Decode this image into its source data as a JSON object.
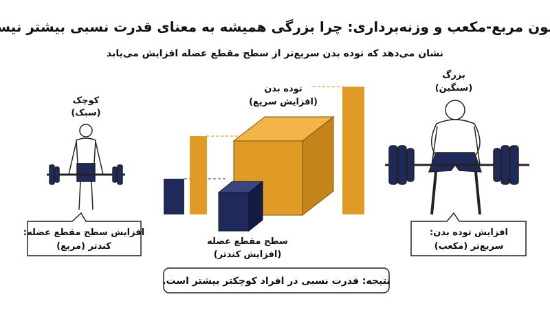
{
  "header": {
    "title": "قانون مربع-مکعب و وزنه‌برداری: چرا بزرگی همیشه به معنای قدرت نسبی بیشتر نیست",
    "subtitle": "نشان می‌دهد که توده بدن سریع‌تر از سطح مقطع عضله افزایش می‌یابد"
  },
  "small_lifter": {
    "label": "کوچک",
    "sublabel": "(سبک)",
    "note_line1": "افزایش سطح مقطع عضله:",
    "note_line2": "کندتر (مربع)"
  },
  "large_lifter": {
    "label": "بزرگ",
    "sublabel": "(سنگین)",
    "note_line1": "افزایش توده بدن:",
    "note_line2": "سریع‌تر (مکعب)"
  },
  "mass_cube": {
    "label": "توده بدن",
    "sublabel": "(افزایش سریع)"
  },
  "area_cube": {
    "label": "سطح مقطع عضله",
    "sublabel": "(افزایش کندتر)"
  },
  "conclusion": "نتیجه: قدرت نسبی در افراد کوچکتر بیشتر است."
}
